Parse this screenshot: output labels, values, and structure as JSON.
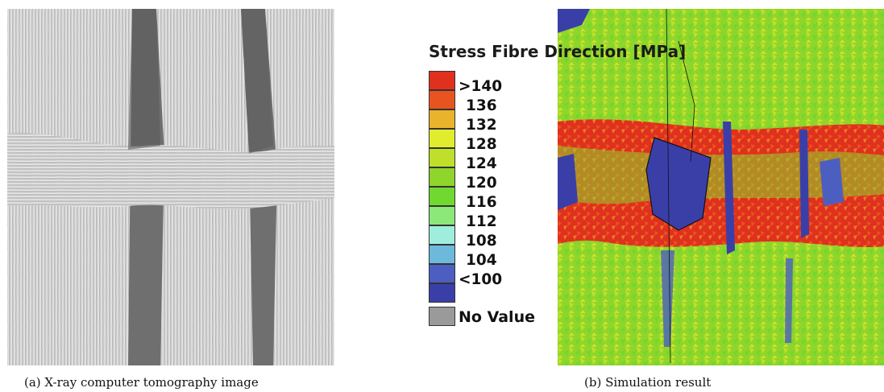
{
  "figure": {
    "panel_a": {
      "caption": "(a) X-ray computer tomography image"
    },
    "panel_b": {
      "caption": "(b) Simulation result",
      "legend": {
        "title": "Stress Fibre Direction [MPa]",
        "levels": [
          {
            "label": ">140",
            "color": "#e0301e"
          },
          {
            "label": "136",
            "color": "#e8541f"
          },
          {
            "label": "132",
            "color": "#e9b42c"
          },
          {
            "label": "128",
            "color": "#e2ec2e"
          },
          {
            "label": "124",
            "color": "#bfe02a"
          },
          {
            "label": "120",
            "color": "#8fd52b"
          },
          {
            "label": "116",
            "color": "#70d82e"
          },
          {
            "label": "112",
            "color": "#8de87a"
          },
          {
            "label": "108",
            "color": "#9feedd"
          },
          {
            "label": "104",
            "color": "#6cb9dc"
          },
          {
            "label": "<100",
            "color": "#4c5fc0"
          },
          {
            "label": "",
            "color": "#3a3fa8"
          }
        ],
        "no_value": {
          "label": "No Value",
          "color": "#9a9a9a"
        }
      }
    }
  }
}
